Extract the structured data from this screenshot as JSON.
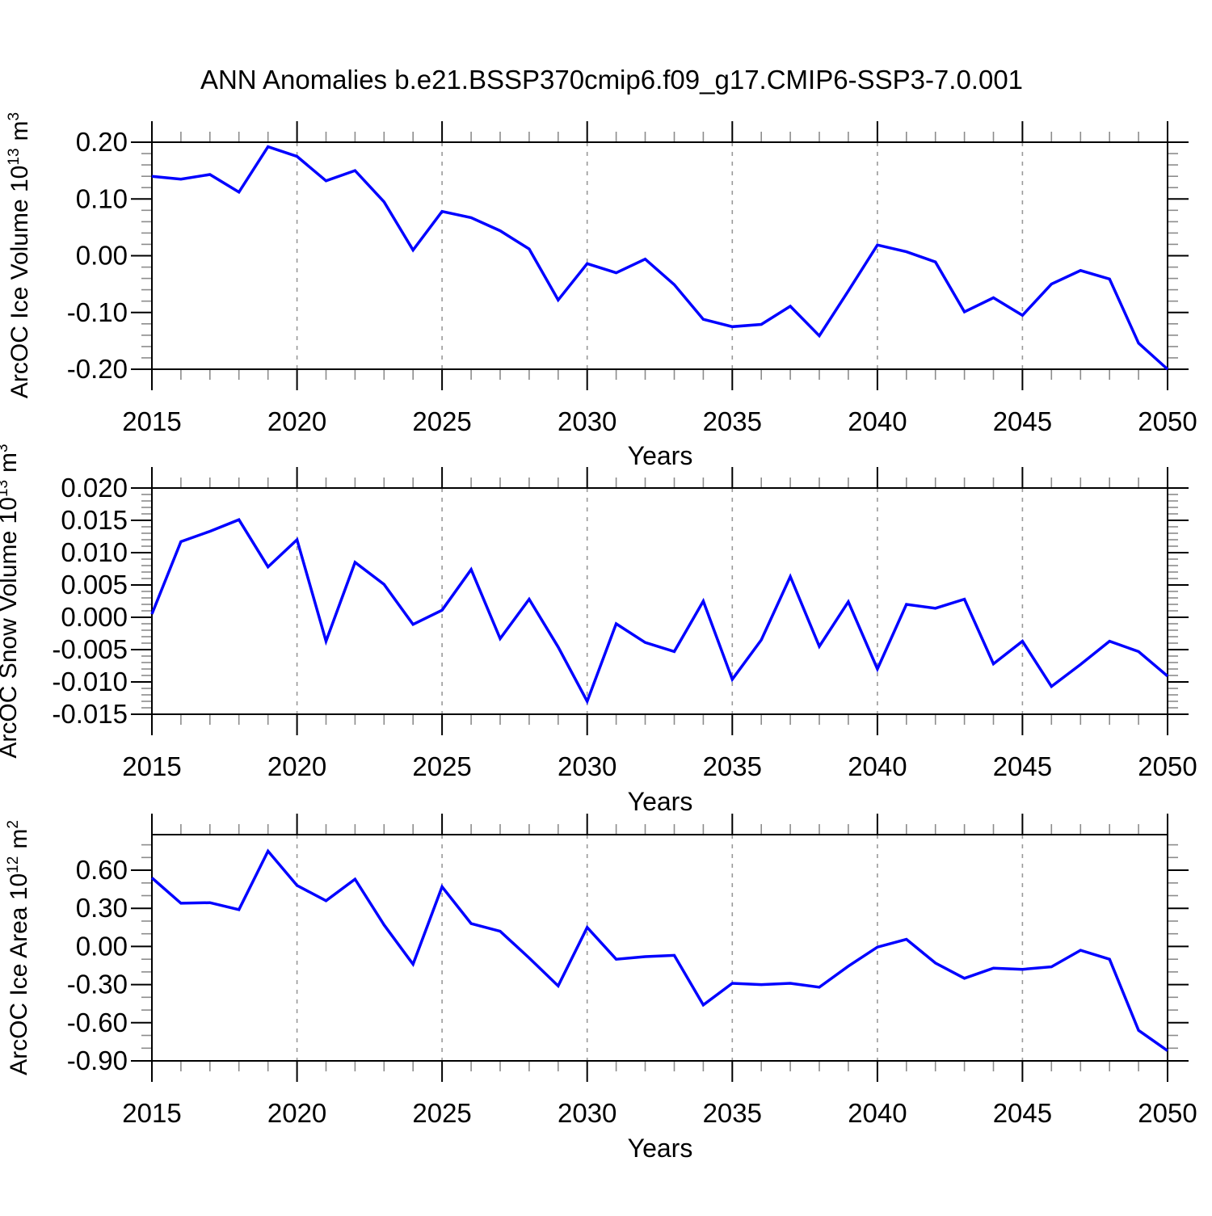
{
  "title": "ANN Anomalies b.e21.BSSP370cmip6.f09_g17.CMIP6-SSP3-7.0.001",
  "chart_data": {
    "type": "line",
    "x": [
      2015,
      2016,
      2017,
      2018,
      2019,
      2020,
      2021,
      2022,
      2023,
      2024,
      2025,
      2026,
      2027,
      2028,
      2029,
      2030,
      2031,
      2032,
      2033,
      2034,
      2035,
      2036,
      2037,
      2038,
      2039,
      2040,
      2041,
      2042,
      2043,
      2044,
      2045,
      2046,
      2047,
      2048,
      2049,
      2050
    ],
    "xlim": [
      2015,
      2050
    ],
    "xticks": [
      2015,
      2020,
      2025,
      2030,
      2035,
      2040,
      2045,
      2050
    ],
    "xtick_labels": [
      "2015",
      "2020",
      "2025",
      "2030",
      "2035",
      "2040",
      "2045",
      "2050"
    ],
    "xtick_minor_step": 1,
    "grid_x": [
      2020,
      2025,
      2030,
      2035,
      2040,
      2045
    ],
    "xlabel": "Years",
    "legend": "none",
    "grid": "vertical-dashed",
    "colors": {
      "line": "#0000ff",
      "grid": "#999999",
      "axis": "#000000",
      "minor_tick": "#8c8c8c"
    },
    "panels": [
      {
        "name": "ArcOC Ice Volume",
        "ylabel": {
          "base": "ArcOC Ice Volume 10",
          "exp": "13",
          "unit": "m",
          "unit_exp": "3"
        },
        "ylim": [
          -0.2,
          0.2
        ],
        "yticks": [
          0.2,
          0.1,
          0.0,
          -0.1,
          -0.2
        ],
        "ytick_labels": [
          "0.20",
          "0.10",
          "0.00",
          "-0.10",
          "-0.20"
        ],
        "ytick_minor_step": 0.02,
        "values": [
          0.14,
          0.135,
          0.143,
          0.112,
          0.192,
          0.175,
          0.132,
          0.15,
          0.095,
          0.01,
          0.078,
          0.067,
          0.044,
          0.012,
          -0.078,
          -0.014,
          -0.03,
          -0.006,
          -0.051,
          -0.112,
          -0.125,
          -0.121,
          -0.089,
          -0.141,
          -0.062,
          0.019,
          0.007,
          -0.011,
          -0.099,
          -0.074,
          -0.105,
          -0.05,
          -0.026,
          -0.041,
          -0.154,
          -0.2
        ]
      },
      {
        "name": "ArcOC Snow Volume",
        "ylabel": {
          "base": "ArcOC Snow Volume 10",
          "exp": "13",
          "unit": "m",
          "unit_exp": "3"
        },
        "ylim": [
          -0.015,
          0.02
        ],
        "yticks": [
          0.02,
          0.015,
          0.01,
          0.005,
          0.0,
          -0.005,
          -0.01,
          -0.015
        ],
        "ytick_labels": [
          "0.020",
          "0.015",
          "0.010",
          "0.005",
          "0.000",
          "-0.005",
          "-0.010",
          "-0.015"
        ],
        "ytick_minor_step": 0.001,
        "values": [
          0.0005,
          0.0117,
          0.0133,
          0.0151,
          0.0078,
          0.012,
          -0.0037,
          0.0085,
          0.0051,
          -0.0011,
          0.0011,
          0.0074,
          -0.0033,
          0.0028,
          -0.0046,
          -0.013,
          -0.001,
          -0.0039,
          -0.0053,
          0.0025,
          -0.0096,
          -0.0035,
          0.0063,
          -0.0045,
          0.0024,
          -0.008,
          0.002,
          0.0014,
          0.0028,
          -0.0072,
          -0.0037,
          -0.0107,
          -0.0073,
          -0.0037,
          -0.0053,
          -0.0091
        ]
      },
      {
        "name": "ArcOC Ice Area",
        "ylabel": {
          "base": "ArcOC Ice Area 10",
          "exp": "12",
          "unit": "m",
          "unit_exp": "2"
        },
        "ylim": [
          -0.9,
          0.88
        ],
        "yticks": [
          0.6,
          0.3,
          0.0,
          -0.3,
          -0.6,
          -0.9
        ],
        "ytick_labels": [
          "0.60",
          "0.30",
          "0.00",
          "-0.30",
          "-0.60",
          "-0.90"
        ],
        "ytick_minor_step": 0.1,
        "values": [
          0.54,
          0.34,
          0.345,
          0.29,
          0.75,
          0.48,
          0.36,
          0.53,
          0.17,
          -0.14,
          0.47,
          0.18,
          0.12,
          -0.09,
          -0.31,
          0.15,
          -0.1,
          -0.08,
          -0.07,
          -0.46,
          -0.29,
          -0.3,
          -0.29,
          -0.32,
          -0.155,
          -0.005,
          0.057,
          -0.13,
          -0.25,
          -0.17,
          -0.18,
          -0.16,
          -0.03,
          -0.1,
          -0.66,
          -0.82
        ]
      }
    ]
  }
}
